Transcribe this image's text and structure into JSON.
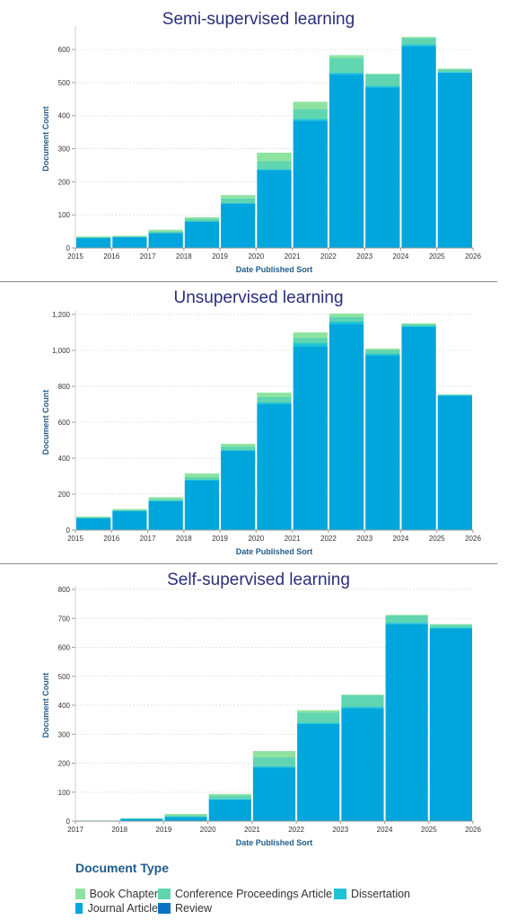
{
  "colors": {
    "Book Chapter": "#8ee3a0",
    "Conference Proceedings Article": "#5fd6b0",
    "Dissertation": "#1fc3d6",
    "Journal Article": "#00a6dc",
    "Review": "#0a73c4"
  },
  "legend": {
    "title": "Document Type",
    "items": [
      "Book Chapter",
      "Conference Proceedings Article",
      "Dissertation",
      "Journal Article",
      "Review"
    ]
  },
  "chart_data": [
    {
      "type": "bar",
      "stacked": true,
      "title": "Semi-supervised learning",
      "xlabel": "Date Published Sort",
      "ylabel": "Document Count",
      "x_ticks": [
        "2015",
        "2016",
        "2017",
        "2018",
        "2019",
        "2020",
        "2021",
        "2022",
        "2023",
        "2024",
        "2025",
        "2026"
      ],
      "categories": [
        "2015",
        "2016",
        "2017",
        "2018",
        "2019",
        "2020",
        "2021",
        "2022",
        "2023",
        "2024",
        "2025"
      ],
      "ylim": [
        0,
        660
      ],
      "y_ticks": [
        "0",
        "100",
        "200",
        "300",
        "400",
        "500",
        "600"
      ],
      "series": [
        {
          "name": "Journal Article",
          "values": [
            30,
            33,
            45,
            80,
            135,
            235,
            385,
            525,
            485,
            610,
            530
          ]
        },
        {
          "name": "Dissertation",
          "values": [
            0,
            0,
            0,
            0,
            0,
            3,
            5,
            5,
            5,
            5,
            2
          ]
        },
        {
          "name": "Conference Proceedings Article",
          "values": [
            3,
            2,
            5,
            8,
            15,
            25,
            30,
            45,
            35,
            20,
            8
          ]
        },
        {
          "name": "Book Chapter",
          "values": [
            2,
            2,
            5,
            5,
            10,
            25,
            22,
            8,
            2,
            3,
            2
          ]
        }
      ]
    },
    {
      "type": "bar",
      "stacked": true,
      "title": "Unsupervised learning",
      "xlabel": "Date Published Sort",
      "ylabel": "Document Count",
      "x_ticks": [
        "2015",
        "2016",
        "2017",
        "2018",
        "2019",
        "2020",
        "2021",
        "2022",
        "2023",
        "2024",
        "2025",
        "2026"
      ],
      "categories": [
        "2015",
        "2016",
        "2017",
        "2018",
        "2019",
        "2020",
        "2021",
        "2022",
        "2023",
        "2024",
        "2025"
      ],
      "ylim": [
        0,
        1200
      ],
      "y_ticks": [
        "0",
        "200",
        "400",
        "600",
        "800",
        "1,000",
        "1,200"
      ],
      "series": [
        {
          "name": "Journal Article",
          "values": [
            65,
            105,
            160,
            275,
            440,
            700,
            1020,
            1145,
            970,
            1130,
            748
          ]
        },
        {
          "name": "Dissertation",
          "values": [
            2,
            2,
            3,
            5,
            5,
            10,
            20,
            15,
            10,
            5,
            2
          ]
        },
        {
          "name": "Conference Proceedings Article",
          "values": [
            5,
            5,
            10,
            15,
            20,
            30,
            30,
            25,
            20,
            10,
            3
          ]
        },
        {
          "name": "Book Chapter",
          "values": [
            3,
            5,
            10,
            20,
            15,
            25,
            30,
            20,
            10,
            5,
            2
          ]
        }
      ]
    },
    {
      "type": "bar",
      "stacked": true,
      "title": "Self-supervised learning",
      "xlabel": "Date Published Sort",
      "ylabel": "Document Count",
      "x_ticks": [
        "2017",
        "2018",
        "2019",
        "2020",
        "2021",
        "2022",
        "2023",
        "2024",
        "2025",
        "2026"
      ],
      "categories": [
        "2017",
        "2018",
        "2019",
        "2020",
        "2021",
        "2022",
        "2023",
        "2024",
        "2025"
      ],
      "ylim": [
        0,
        800
      ],
      "y_ticks": [
        "0",
        "100",
        "200",
        "300",
        "400",
        "500",
        "600",
        "700",
        "800"
      ],
      "series": [
        {
          "name": "Journal Article",
          "values": [
            2,
            8,
            15,
            75,
            185,
            335,
            390,
            680,
            665
          ]
        },
        {
          "name": "Dissertation",
          "values": [
            0,
            0,
            0,
            2,
            5,
            5,
            5,
            5,
            3
          ]
        },
        {
          "name": "Conference Proceedings Article",
          "values": [
            0,
            2,
            5,
            12,
            30,
            35,
            40,
            25,
            10
          ]
        },
        {
          "name": "Book Chapter",
          "values": [
            0,
            0,
            5,
            5,
            22,
            8,
            2,
            2,
            2
          ]
        }
      ]
    }
  ]
}
